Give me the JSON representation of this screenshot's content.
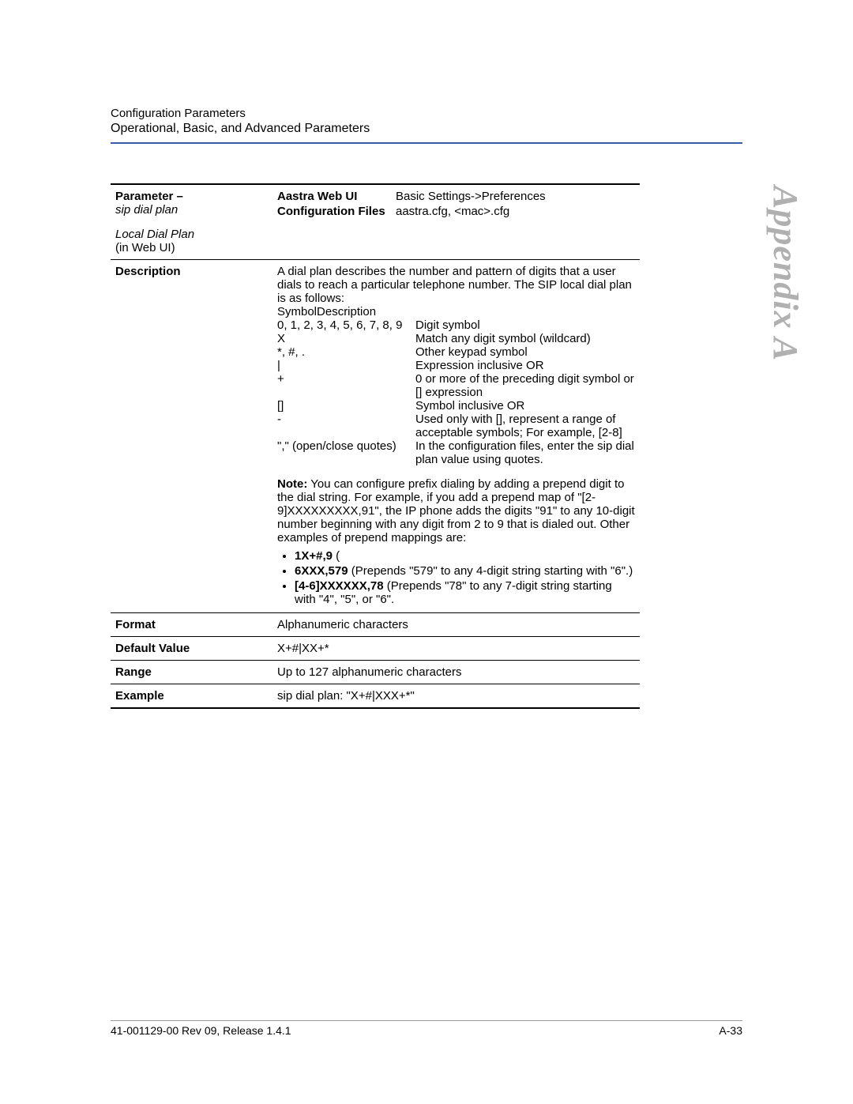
{
  "header": {
    "line1": "Configuration Parameters",
    "line2": "Operational, Basic, and Advanced Parameters"
  },
  "sideLabel": "Appendix A",
  "param": {
    "labelTitle": "Parameter –",
    "name": "sip dial plan",
    "localLabel": "Local Dial Plan",
    "localNote": "(in Web UI)",
    "webLabel": "Aastra Web UI",
    "webValue": "Basic Settings->Preferences",
    "cfgLabel": "Configuration Files",
    "cfgValue": "aastra.cfg, <mac>.cfg"
  },
  "descLabel": "Description",
  "desc": {
    "intro": "A dial plan describes the number and pattern of digits that a user dials to reach a particular telephone number. The SIP local dial plan is as follows:",
    "symHeader": "SymbolDescription",
    "symbols": [
      {
        "s": "0, 1, 2, 3, 4, 5, 6, 7, 8, 9",
        "d": "Digit symbol"
      },
      {
        "s": "X",
        "d": "Match any digit symbol (wildcard)"
      },
      {
        "s": "*, #, .",
        "d": "Other keypad symbol"
      },
      {
        "s": "|",
        "d": "Expression inclusive OR"
      },
      {
        "s": "+",
        "d": "0 or more of the preceding digit symbol or [] expression"
      },
      {
        "s": "[]",
        "d": "Symbol inclusive OR"
      },
      {
        "s": "-",
        "d": "Used only with [], represent a range of acceptable symbols; For example, [2-8]"
      },
      {
        "s": "\",\" (open/close quotes)",
        "d": "In the configuration files, enter the sip dial plan value using quotes."
      }
    ],
    "noteLabel": "Note:",
    "note": " You can configure prefix dialing by adding a prepend digit to the dial string. For example, if you add a prepend map of \"[2-9]XXXXXXXXX,91\", the IP phone adds the digits \"91\" to any 10-digit number beginning with any digit from 2 to 9 that is dialed out. Other examples of prepend mappings are:",
    "bullets": [
      {
        "b": "1X+#,9",
        "t": " ("
      },
      {
        "b": "6XXX,579",
        "t": " (Prepends \"579\" to any 4-digit string starting with \"6\".)"
      },
      {
        "b": "[4-6]XXXXXX,78",
        "t": " (Prepends \"78\" to any 7-digit string starting with \"4\", \"5\", or \"6\"."
      }
    ]
  },
  "rows": {
    "formatLabel": "Format",
    "formatValue": "Alphanumeric characters",
    "defaultLabel": "Default Value",
    "defaultValue": "X+#|XX+*",
    "rangeLabel": "Range",
    "rangeValue": "Up to 127 alphanumeric characters",
    "exampleLabel": "Example",
    "exampleValue": "sip dial plan: \"X+#|XXX+*\""
  },
  "footer": {
    "left": "41-001129-00 Rev 09, Release 1.4.1",
    "right": "A-33"
  }
}
